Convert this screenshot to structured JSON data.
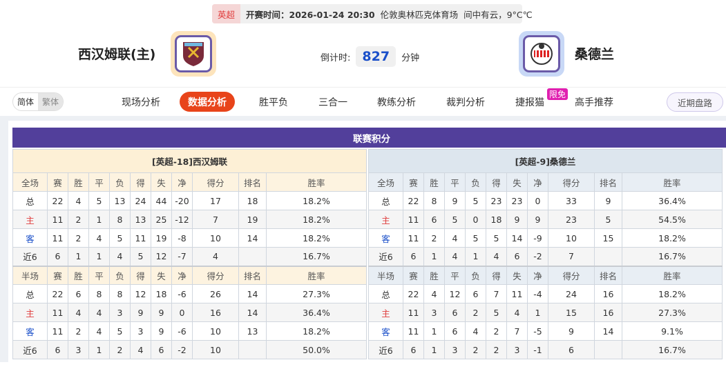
{
  "match": {
    "league": "英超",
    "time": "开赛时间：2026-01-24 20:30",
    "venue": "伦敦奥林匹克体育场",
    "weather": "间中有云，9°C℃"
  },
  "home": {
    "name": "西汉姆联(主)",
    "logo": "west-ham-crest",
    "logo_border": "#fde4bc"
  },
  "away": {
    "name": "桑德兰",
    "logo": "sunderland-crest",
    "logo_border": "#c8d8f6"
  },
  "countdown": {
    "label": "倒计时:",
    "value": "827",
    "unit": "分钟"
  },
  "lang": {
    "simplified": "简体",
    "traditional": "繁体"
  },
  "nav": [
    {
      "label": "现场分析"
    },
    {
      "label": "数据分析",
      "active": true
    },
    {
      "label": "胜平负"
    },
    {
      "label": "三合一"
    },
    {
      "label": "教练分析"
    },
    {
      "label": "裁判分析"
    },
    {
      "label": "捷报猫"
    },
    {
      "label": "高手推荐"
    }
  ],
  "nav_badge": "限免",
  "recent_button": "近期盘路",
  "section_title": "联赛积分",
  "headers_full": [
    "全场",
    "赛",
    "胜",
    "平",
    "负",
    "得",
    "失",
    "净",
    "得分",
    "排名",
    "胜率"
  ],
  "headers_half": [
    "半场",
    "赛",
    "胜",
    "平",
    "负",
    "得",
    "失",
    "净",
    "得分",
    "排名",
    "胜率"
  ],
  "left": {
    "title": "[英超-18]西汉姆联",
    "full": [
      [
        "总",
        "22",
        "4",
        "5",
        "13",
        "24",
        "44",
        "-20",
        "17",
        "18",
        "18.2%"
      ],
      [
        "主",
        "11",
        "2",
        "1",
        "8",
        "13",
        "25",
        "-12",
        "7",
        "19",
        "18.2%"
      ],
      [
        "客",
        "11",
        "2",
        "4",
        "5",
        "11",
        "19",
        "-8",
        "10",
        "14",
        "18.2%"
      ],
      [
        "近6",
        "6",
        "1",
        "1",
        "4",
        "5",
        "12",
        "-7",
        "4",
        "",
        "16.7%"
      ]
    ],
    "half": [
      [
        "总",
        "22",
        "6",
        "8",
        "8",
        "12",
        "18",
        "-6",
        "26",
        "14",
        "27.3%"
      ],
      [
        "主",
        "11",
        "4",
        "4",
        "3",
        "9",
        "9",
        "0",
        "16",
        "14",
        "36.4%"
      ],
      [
        "客",
        "11",
        "2",
        "4",
        "5",
        "3",
        "9",
        "-6",
        "10",
        "13",
        "18.2%"
      ],
      [
        "近6",
        "6",
        "3",
        "1",
        "2",
        "4",
        "6",
        "-2",
        "10",
        "",
        "50.0%"
      ]
    ]
  },
  "right": {
    "title": "[英超-9]桑德兰",
    "full": [
      [
        "总",
        "22",
        "8",
        "9",
        "5",
        "23",
        "23",
        "0",
        "33",
        "9",
        "36.4%"
      ],
      [
        "主",
        "11",
        "6",
        "5",
        "0",
        "18",
        "9",
        "9",
        "23",
        "5",
        "54.5%"
      ],
      [
        "客",
        "11",
        "2",
        "4",
        "5",
        "5",
        "14",
        "-9",
        "10",
        "15",
        "18.2%"
      ],
      [
        "近6",
        "6",
        "1",
        "4",
        "1",
        "4",
        "6",
        "-2",
        "7",
        "",
        "16.7%"
      ]
    ],
    "half": [
      [
        "总",
        "22",
        "4",
        "12",
        "6",
        "7",
        "11",
        "-4",
        "24",
        "16",
        "18.2%"
      ],
      [
        "主",
        "11",
        "3",
        "6",
        "2",
        "5",
        "4",
        "1",
        "15",
        "16",
        "27.3%"
      ],
      [
        "客",
        "11",
        "1",
        "6",
        "4",
        "2",
        "7",
        "-5",
        "9",
        "14",
        "9.1%"
      ],
      [
        "近6",
        "6",
        "1",
        "3",
        "2",
        "2",
        "3",
        "-1",
        "6",
        "",
        "16.7%"
      ]
    ]
  },
  "colors": {
    "accent": "#e8441a",
    "title_bar": "#523f9b",
    "home_red": "#e03c3c",
    "away_blue": "#1a4fc9"
  }
}
